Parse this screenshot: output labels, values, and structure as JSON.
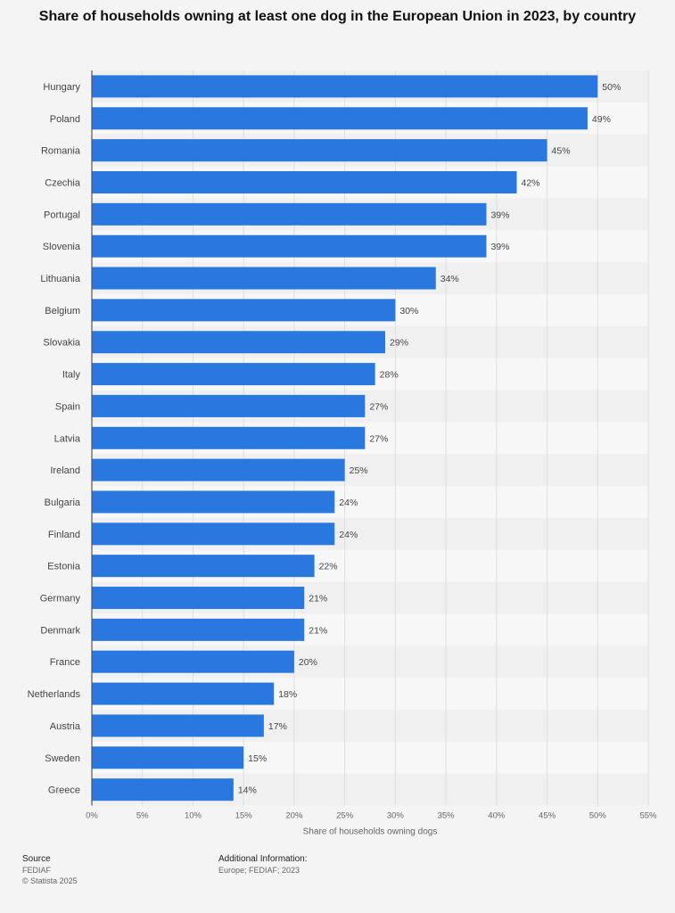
{
  "title": "Share of households owning at least one dog in the European Union in 2023, by country",
  "chart_data": {
    "type": "bar",
    "orientation": "horizontal",
    "categories": [
      "Hungary",
      "Poland",
      "Romania",
      "Czechia",
      "Portugal",
      "Slovenia",
      "Lithuania",
      "Belgium",
      "Slovakia",
      "Italy",
      "Spain",
      "Latvia",
      "Ireland",
      "Bulgaria",
      "Finland",
      "Estonia",
      "Germany",
      "Denmark",
      "France",
      "Netherlands",
      "Austria",
      "Sweden",
      "Greece"
    ],
    "values": [
      50,
      49,
      45,
      42,
      39,
      39,
      34,
      30,
      29,
      28,
      27,
      27,
      25,
      24,
      24,
      22,
      21,
      21,
      20,
      18,
      17,
      15,
      14
    ],
    "value_labels": [
      "50%",
      "49%",
      "45%",
      "42%",
      "39%",
      "39%",
      "34%",
      "30%",
      "29%",
      "28%",
      "27%",
      "27%",
      "25%",
      "24%",
      "24%",
      "22%",
      "21%",
      "21%",
      "20%",
      "18%",
      "17%",
      "15%",
      "14%"
    ],
    "x_ticks": [
      0,
      5,
      10,
      15,
      20,
      25,
      30,
      35,
      40,
      45,
      50,
      55
    ],
    "x_tick_labels": [
      "0%",
      "5%",
      "10%",
      "15%",
      "20%",
      "25%",
      "30%",
      "35%",
      "40%",
      "45%",
      "50%",
      "55%"
    ],
    "xlim": [
      0,
      55
    ],
    "xlabel": "Share of households owning dogs",
    "ylabel": "",
    "grid": true,
    "bar_color": "#2878e0"
  },
  "footer": {
    "source_heading": "Source",
    "source_lines": [
      "FEDIAF",
      "© Statista 2025"
    ],
    "info_heading": "Additional Information:",
    "info_lines": [
      "Europe; FEDIAF; 2023"
    ]
  }
}
